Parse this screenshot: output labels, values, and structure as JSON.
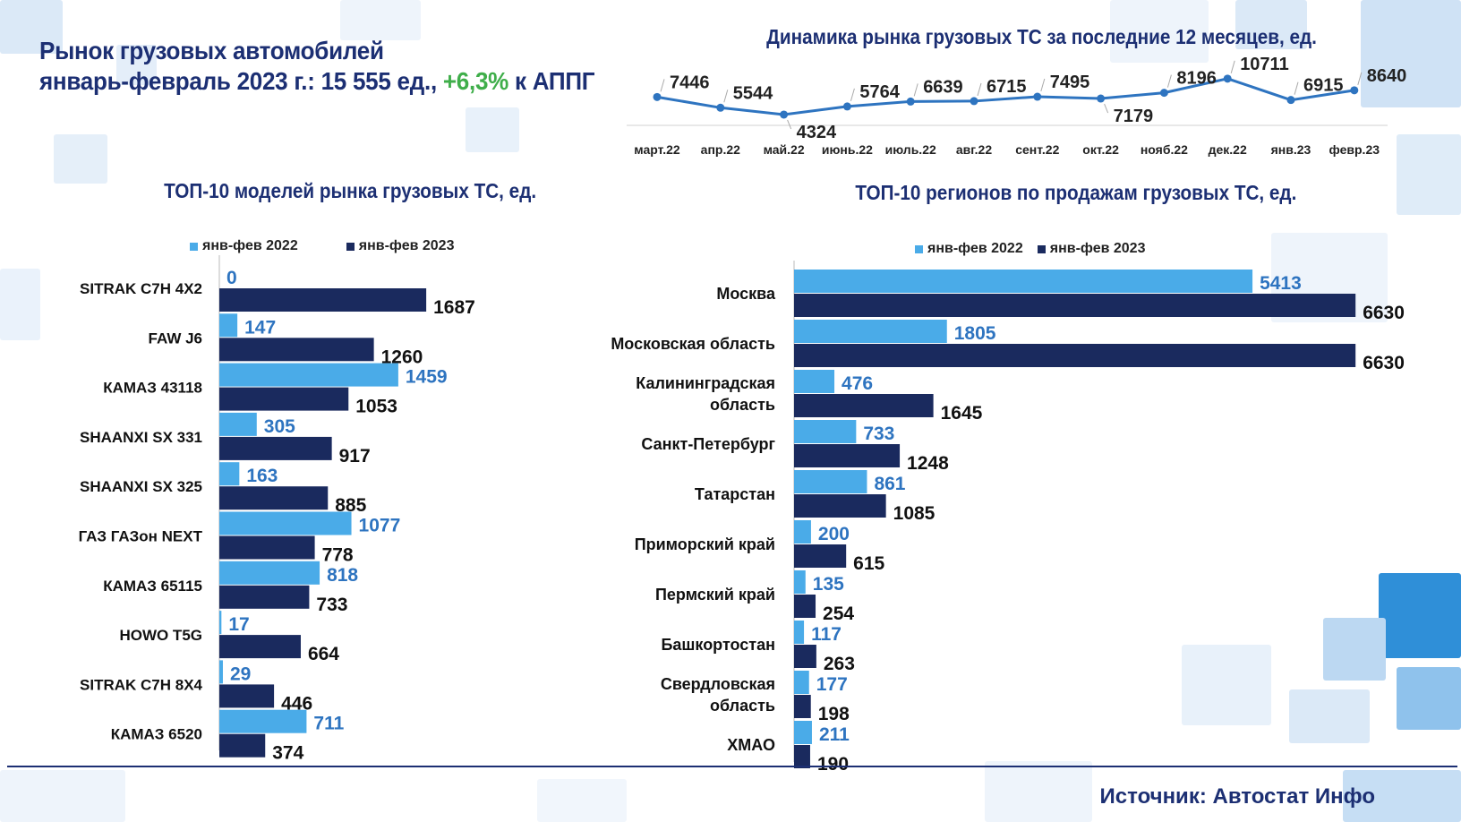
{
  "header": {
    "title_line1": "Рынок грузовых автомобилей",
    "title_line2_prefix": "январь-февраль 2023 г.: 15 555 ед., ",
    "title_line2_growth": "+6,3%",
    "title_line2_suffix": " к АППГ"
  },
  "footer": {
    "source": "Источник: Автостат Инфо"
  },
  "colors": {
    "series_2022": "#4aabe8",
    "series_2023": "#1a2a5e",
    "line": "#2e74c0",
    "title": "#1c2f73",
    "label_2022": "#2e74c0",
    "label_2023": "#111111"
  },
  "chart_data": [
    {
      "type": "line",
      "title": "Динамика рынка грузовых ТС за последние 12 месяцев, ед.",
      "categories": [
        "март.22",
        "апр.22",
        "май.22",
        "июнь.22",
        "июль.22",
        "авг.22",
        "сент.22",
        "окт.22",
        "нояб.22",
        "дек.22",
        "янв.23",
        "февр.23"
      ],
      "values": [
        7446,
        5544,
        4324,
        5764,
        6639,
        6715,
        7495,
        7179,
        8196,
        10711,
        6915,
        8640
      ]
    },
    {
      "type": "bar",
      "orientation": "horizontal",
      "title": "ТОП-10 моделей рынка грузовых ТС, ед.",
      "categories": [
        "SITRAK C7H 4X2",
        "FAW J6",
        "КАМАЗ 43118",
        "SHAANXI SX 331",
        "SHAANXI SX 325",
        "ГАЗ ГАЗон NEXT",
        "КАМАЗ 65115",
        "HOWO T5G",
        "SITRAK C7H 8X4",
        "КАМАЗ 6520"
      ],
      "series": [
        {
          "name": "янв-фев 2022",
          "values": [
            0,
            147,
            1459,
            305,
            163,
            1077,
            818,
            17,
            29,
            711
          ]
        },
        {
          "name": "янв-фев 2023",
          "values": [
            1687,
            1260,
            1053,
            917,
            885,
            778,
            733,
            664,
            446,
            374
          ]
        }
      ],
      "legend": "top"
    },
    {
      "type": "bar",
      "orientation": "horizontal",
      "title": "ТОП-10 регионов по продажам грузовых ТС, ед.",
      "categories": [
        [
          "Москва"
        ],
        [
          "Московская область"
        ],
        [
          "Калининградская",
          "область"
        ],
        [
          "Санкт-Петербург"
        ],
        [
          "Татарстан"
        ],
        [
          "Приморский край"
        ],
        [
          "Пермский край"
        ],
        [
          "Башкортостан"
        ],
        [
          "Свердловская",
          "область"
        ],
        [
          "ХМАО"
        ]
      ],
      "series": [
        {
          "name": "янв-фев 2022",
          "values": [
            5413,
            1805,
            476,
            733,
            861,
            200,
            135,
            117,
            177,
            211
          ]
        },
        {
          "name": "янв-фев 2023",
          "values": [
            6630,
            6630,
            1645,
            1248,
            1085,
            615,
            254,
            263,
            198,
            190
          ]
        }
      ],
      "legend": "top"
    }
  ]
}
